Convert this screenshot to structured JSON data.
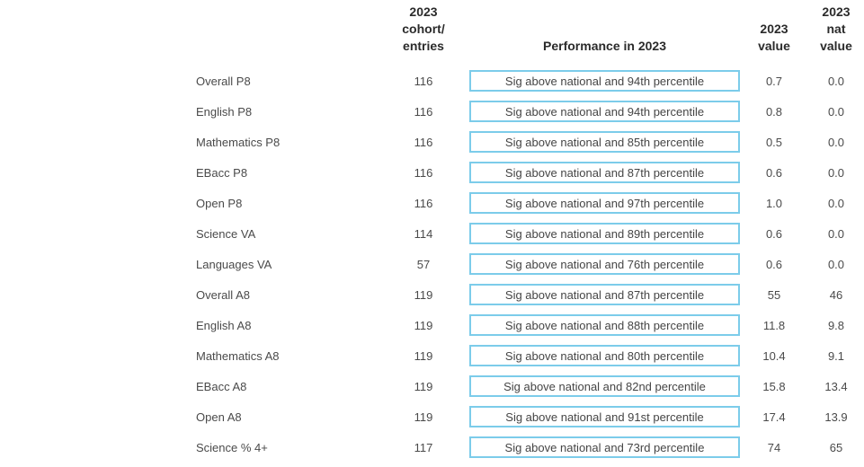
{
  "colors": {
    "background": "#ffffff",
    "box_border": "#7cccea",
    "header_text": "#2b2b2b",
    "body_text": "#4a4a4a"
  },
  "table": {
    "headers": {
      "label": "",
      "cohort": [
        "2023",
        "cohort/",
        "entries"
      ],
      "performance": [
        "Performance in 2023"
      ],
      "value": [
        "2023",
        "value"
      ],
      "nat_value": [
        "2023",
        "nat",
        "value"
      ]
    },
    "rows": [
      {
        "label": "Overall P8",
        "cohort": "116",
        "performance": "Sig above national and 94th percentile",
        "value": "0.7",
        "nat_value": "0.0"
      },
      {
        "label": "English P8",
        "cohort": "116",
        "performance": "Sig above national and 94th percentile",
        "value": "0.8",
        "nat_value": "0.0"
      },
      {
        "label": "Mathematics P8",
        "cohort": "116",
        "performance": "Sig above national and 85th percentile",
        "value": "0.5",
        "nat_value": "0.0"
      },
      {
        "label": "EBacc P8",
        "cohort": "116",
        "performance": "Sig above national and 87th percentile",
        "value": "0.6",
        "nat_value": "0.0"
      },
      {
        "label": "Open P8",
        "cohort": "116",
        "performance": "Sig above national and 97th percentile",
        "value": "1.0",
        "nat_value": "0.0"
      },
      {
        "label": "Science VA",
        "cohort": "114",
        "performance": "Sig above national and 89th percentile",
        "value": "0.6",
        "nat_value": "0.0"
      },
      {
        "label": "Languages VA",
        "cohort": "57",
        "performance": "Sig above national and 76th percentile",
        "value": "0.6",
        "nat_value": "0.0"
      },
      {
        "label": "Overall A8",
        "cohort": "119",
        "performance": "Sig above national and 87th percentile",
        "value": "55",
        "nat_value": "46"
      },
      {
        "label": "English A8",
        "cohort": "119",
        "performance": "Sig above national and 88th percentile",
        "value": "11.8",
        "nat_value": "9.8"
      },
      {
        "label": "Mathematics A8",
        "cohort": "119",
        "performance": "Sig above national and 80th percentile",
        "value": "10.4",
        "nat_value": "9.1"
      },
      {
        "label": "EBacc A8",
        "cohort": "119",
        "performance": "Sig above national and 82nd percentile",
        "value": "15.8",
        "nat_value": "13.4"
      },
      {
        "label": "Open A8",
        "cohort": "119",
        "performance": "Sig above national and 91st percentile",
        "value": "17.4",
        "nat_value": "13.9"
      },
      {
        "label": "Science % 4+",
        "cohort": "117",
        "performance": "Sig above national and 73rd percentile",
        "value": "74",
        "nat_value": "65"
      }
    ]
  }
}
